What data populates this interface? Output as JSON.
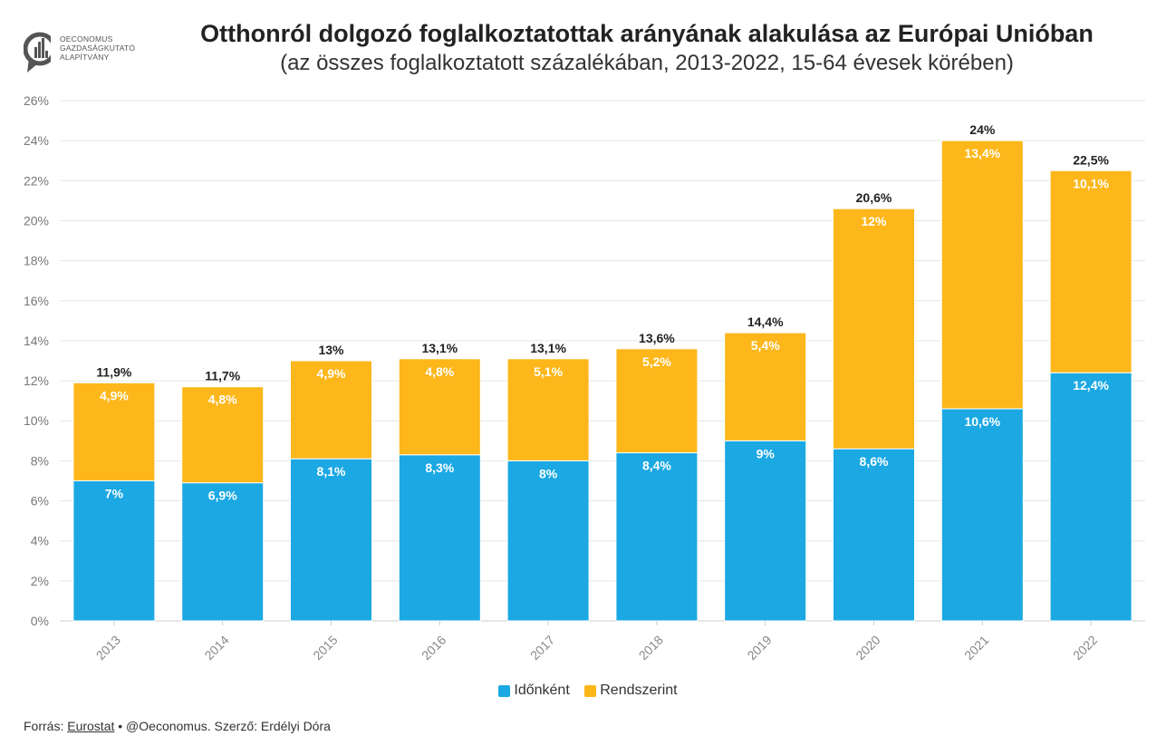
{
  "header": {
    "logo_lines": [
      "OECONOMUS",
      "GAZDASÁGKUTATÓ",
      "ALAPÍTVÁNY"
    ],
    "title": "Otthonról dolgozó foglalkoztatottak arányának alakulása az Európai Unióban",
    "subtitle": "(az összes foglalkoztatott százalékában, 2013-2022, 15-64 évesek körében)"
  },
  "chart_data": {
    "type": "bar",
    "stacked": true,
    "categories": [
      "2013",
      "2014",
      "2015",
      "2016",
      "2017",
      "2018",
      "2019",
      "2020",
      "2021",
      "2022"
    ],
    "series": [
      {
        "name": "Időnként",
        "color": "#1ba8e3",
        "values": [
          7,
          6.9,
          8.1,
          8.3,
          8,
          8.4,
          9,
          8.6,
          10.6,
          12.4
        ],
        "labels": [
          "7%",
          "6,9%",
          "8,1%",
          "8,3%",
          "8%",
          "8,4%",
          "9%",
          "8,6%",
          "10,6%",
          "12,4%"
        ]
      },
      {
        "name": "Rendszerint",
        "color": "#fdb71a",
        "values": [
          4.9,
          4.8,
          4.9,
          4.8,
          5.1,
          5.2,
          5.4,
          12,
          13.4,
          10.1
        ],
        "labels": [
          "4,9%",
          "4,8%",
          "4,9%",
          "4,8%",
          "5,1%",
          "5,2%",
          "5,4%",
          "12%",
          "13,4%",
          "10,1%"
        ]
      }
    ],
    "totals": [
      11.9,
      11.7,
      13,
      13.1,
      13.1,
      13.6,
      14.4,
      20.6,
      24,
      22.5
    ],
    "total_labels": [
      "11,9%",
      "11,7%",
      "13%",
      "13,1%",
      "13,1%",
      "13,6%",
      "14,4%",
      "20,6%",
      "24%",
      "22,5%"
    ],
    "y_ticks": [
      0,
      2,
      4,
      6,
      8,
      10,
      12,
      14,
      16,
      18,
      20,
      22,
      24,
      26
    ],
    "y_tick_labels": [
      "0%",
      "2%",
      "4%",
      "6%",
      "8%",
      "10%",
      "12%",
      "14%",
      "16%",
      "18%",
      "20%",
      "22%",
      "24%",
      "26%"
    ],
    "ylim": [
      0,
      26
    ],
    "xlabel": "",
    "ylabel": "",
    "legend_position": "bottom-center",
    "grid": true
  },
  "footer": {
    "prefix": "Forrás: ",
    "source_link": "Eurostat",
    "suffix": " • @Oeconomus. Szerző: Erdélyi Dóra"
  }
}
